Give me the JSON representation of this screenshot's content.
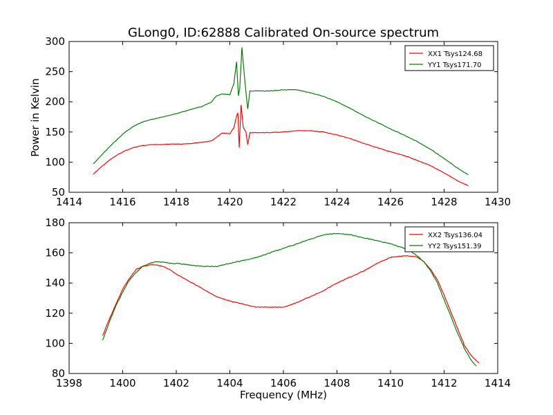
{
  "figure": {
    "title": "GLong0, ID:62888 Calibrated On-source spectrum",
    "ylabel": "Power in Kelvin",
    "xlabel": "Frequency (MHz)"
  },
  "chart_data": [
    {
      "type": "line",
      "title": "GLong0, ID:62888 Calibrated On-source spectrum",
      "xlabel": "",
      "ylabel": "Power in Kelvin",
      "xlim": [
        1414,
        1430
      ],
      "ylim": [
        50,
        300
      ],
      "xticks": [
        1414,
        1416,
        1418,
        1420,
        1422,
        1424,
        1426,
        1428,
        1430
      ],
      "yticks": [
        50,
        100,
        150,
        200,
        250,
        300
      ],
      "legend_position": "top-right",
      "series": [
        {
          "name": "XX1 Tsys124.68",
          "color": "#ff0000",
          "x": [
            1414.9,
            1415.2,
            1415.5,
            1415.8,
            1416.1,
            1416.4,
            1416.7,
            1417.0,
            1417.4,
            1417.8,
            1418.2,
            1418.6,
            1419.0,
            1419.3,
            1419.5,
            1419.7,
            1420.0,
            1420.15,
            1420.25,
            1420.3,
            1420.35,
            1420.42,
            1420.5,
            1420.6,
            1420.67,
            1420.75,
            1421.0,
            1421.5,
            1422.0,
            1422.5,
            1423.0,
            1423.5,
            1424.0,
            1424.5,
            1425.0,
            1425.5,
            1426.0,
            1426.5,
            1427.0,
            1427.5,
            1428.0,
            1428.5,
            1428.9
          ],
          "y": [
            80,
            92,
            103,
            112,
            119,
            124,
            127,
            129,
            129,
            130,
            130,
            131,
            133,
            135,
            141,
            148,
            147,
            157,
            176,
            182,
            124,
            195,
            158,
            150,
            129,
            149,
            149,
            149,
            150,
            152,
            152,
            150,
            145,
            139,
            131,
            124,
            117,
            111,
            103,
            94,
            82,
            69,
            61
          ]
        },
        {
          "name": "YY1 Tsys171.70",
          "color": "#008000",
          "x": [
            1414.9,
            1415.2,
            1415.5,
            1415.8,
            1416.1,
            1416.4,
            1416.7,
            1417.0,
            1417.4,
            1417.8,
            1418.2,
            1418.6,
            1419.0,
            1419.3,
            1419.5,
            1419.7,
            1420.0,
            1420.15,
            1420.25,
            1420.32,
            1420.37,
            1420.45,
            1420.55,
            1420.62,
            1420.67,
            1420.75,
            1421.0,
            1421.5,
            1422.0,
            1422.5,
            1423.0,
            1423.5,
            1424.0,
            1424.5,
            1425.0,
            1425.5,
            1426.0,
            1426.5,
            1427.0,
            1427.5,
            1428.0,
            1428.5,
            1428.9
          ],
          "y": [
            97,
            111,
            125,
            138,
            150,
            159,
            166,
            170,
            174,
            178,
            183,
            188,
            193,
            199,
            210,
            213,
            212,
            230,
            266,
            210,
            222,
            290,
            240,
            207,
            188,
            218,
            218,
            218,
            220,
            220,
            215,
            209,
            200,
            189,
            177,
            166,
            155,
            145,
            134,
            121,
            106,
            90,
            79
          ]
        }
      ]
    },
    {
      "type": "line",
      "title": "",
      "xlabel": "Frequency (MHz)",
      "ylabel": "",
      "xlim": [
        1398,
        1414
      ],
      "ylim": [
        80,
        180
      ],
      "xticks": [
        1398,
        1400,
        1402,
        1404,
        1406,
        1408,
        1410,
        1412,
        1414
      ],
      "yticks": [
        80,
        100,
        120,
        140,
        160,
        180
      ],
      "legend_position": "top-right",
      "series": [
        {
          "name": "XX2 Tsys136.04",
          "color": "#ff0000",
          "x": [
            1399.25,
            1399.5,
            1399.75,
            1400.0,
            1400.25,
            1400.5,
            1400.75,
            1401.0,
            1401.25,
            1401.5,
            1401.75,
            1402.0,
            1402.5,
            1403.0,
            1403.5,
            1404.0,
            1404.5,
            1405.0,
            1405.5,
            1406.0,
            1406.5,
            1407.0,
            1407.5,
            1408.0,
            1408.5,
            1409.0,
            1409.5,
            1410.0,
            1410.5,
            1410.75,
            1411.0,
            1411.25,
            1411.5,
            1411.75,
            1412.0,
            1412.25,
            1412.5,
            1412.75,
            1413.0,
            1413.3
          ],
          "y": [
            105,
            116,
            126,
            136,
            143,
            149,
            151,
            152,
            152,
            151,
            149,
            146,
            141,
            136,
            131,
            128,
            126,
            124,
            124,
            124,
            127,
            131,
            135,
            140,
            144,
            148,
            153,
            157,
            158,
            158,
            157,
            154,
            149,
            142,
            132,
            121,
            110,
            99,
            92,
            87
          ]
        },
        {
          "name": "YY2 Tsys151.39",
          "color": "#008000",
          "x": [
            1399.25,
            1399.5,
            1399.75,
            1400.0,
            1400.25,
            1400.5,
            1400.75,
            1401.0,
            1401.25,
            1401.5,
            1401.75,
            1402.0,
            1402.5,
            1403.0,
            1403.5,
            1404.0,
            1404.5,
            1405.0,
            1405.5,
            1406.0,
            1406.5,
            1407.0,
            1407.5,
            1408.0,
            1408.5,
            1409.0,
            1409.5,
            1410.0,
            1410.5,
            1410.75,
            1411.0,
            1411.25,
            1411.5,
            1411.75,
            1412.0,
            1412.25,
            1412.5,
            1412.75,
            1413.0,
            1413.2
          ],
          "y": [
            102,
            114,
            125,
            134,
            142,
            147,
            151,
            153,
            154,
            154,
            153,
            153,
            152,
            151,
            151,
            153,
            155,
            157,
            160,
            163,
            166,
            169,
            172,
            173,
            172,
            170,
            168,
            166,
            163,
            161,
            158,
            154,
            148,
            140,
            129,
            118,
            107,
            97,
            89,
            85
          ]
        }
      ]
    }
  ]
}
